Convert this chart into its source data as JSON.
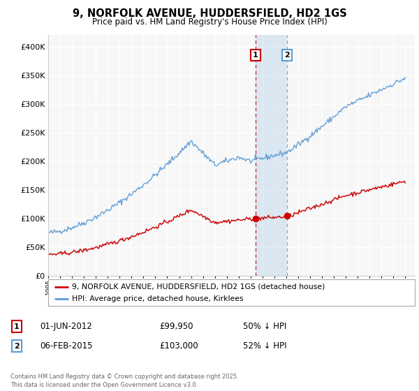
{
  "title": "9, NORFOLK AVENUE, HUDDERSFIELD, HD2 1GS",
  "subtitle": "Price paid vs. HM Land Registry's House Price Index (HPI)",
  "ylim": [
    0,
    420000
  ],
  "xlim": [
    1995,
    2025.5
  ],
  "hpi_color": "#5b9bd5",
  "price_color": "#cc0000",
  "marker1_year": 2012.4167,
  "marker2_year": 2015.0833,
  "legend_line1": "9, NORFOLK AVENUE, HUDDERSFIELD, HD2 1GS (detached house)",
  "legend_line2": "HPI: Average price, detached house, Kirklees",
  "info1_date": "01-JUN-2012",
  "info1_price": "£99,950",
  "info1_pct": "50% ↓ HPI",
  "info2_date": "06-FEB-2015",
  "info2_price": "£103,000",
  "info2_pct": "52% ↓ HPI",
  "footnote": "Contains HM Land Registry data © Crown copyright and database right 2025.\nThis data is licensed under the Open Government Licence v3.0.",
  "background_color": "#ffffff",
  "plot_bg_color": "#f7f7f7"
}
